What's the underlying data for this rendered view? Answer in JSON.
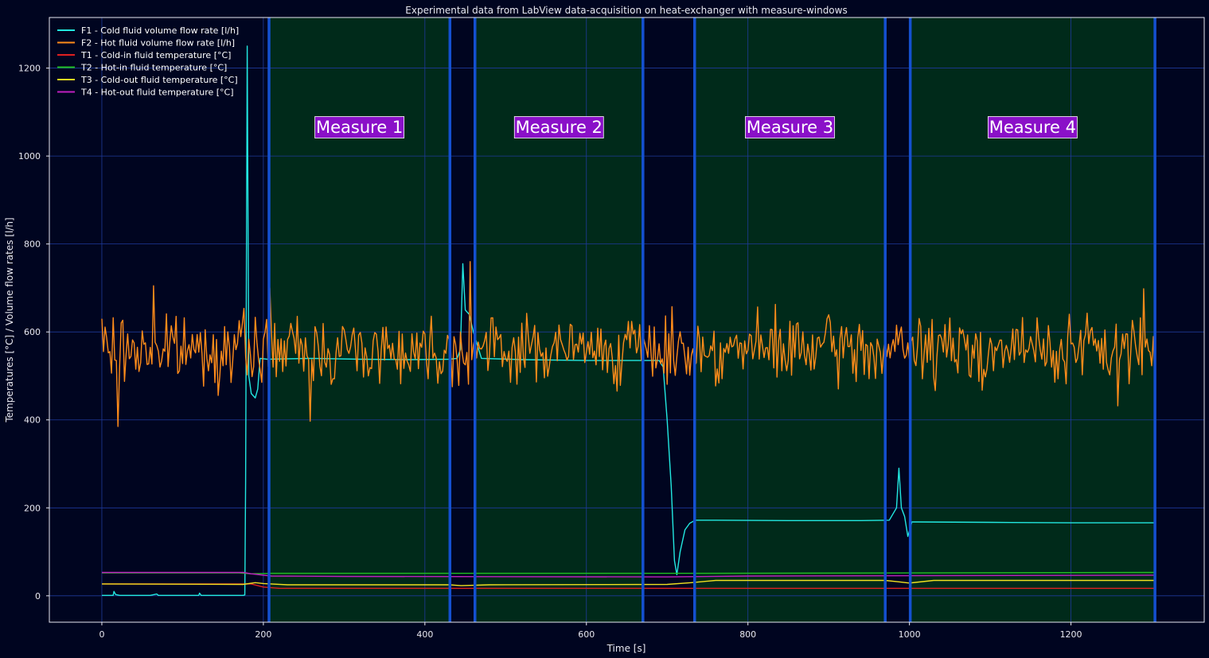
{
  "chart_data": {
    "type": "line",
    "title": "Experimental data from LabView data-acquisition on heat-exchanger with measure-windows",
    "xlabel": "Time [s]",
    "ylabel": "Temperatures [°C]    /   Volume flow rates [l/h]",
    "xlim": [
      -65,
      1365
    ],
    "ylim": [
      -60,
      1315
    ],
    "xticks": [
      0,
      200,
      400,
      600,
      800,
      1000,
      1200
    ],
    "yticks": [
      0,
      200,
      400,
      600,
      800,
      1000,
      1200
    ],
    "grid": true,
    "legend_position": "top-left",
    "background": "#000520",
    "grid_color": "#1f3a9a",
    "measure_fill": "#002a1a",
    "measure_line_color": "#1450d0",
    "measure_label_bg": "#8a10c8",
    "measure_windows": [
      {
        "label": "Measure 1",
        "start": 207,
        "end": 431
      },
      {
        "label": "Measure 2",
        "start": 462,
        "end": 670
      },
      {
        "label": "Measure 3",
        "start": 734,
        "end": 970
      },
      {
        "label": "Measure 4",
        "start": 1001,
        "end": 1304
      }
    ],
    "series": [
      {
        "name": "F1 - Cold fluid volume flow rate [l/h]",
        "color": "#22e8e0",
        "points": [
          [
            0,
            1
          ],
          [
            14,
            1
          ],
          [
            15,
            10
          ],
          [
            17,
            3
          ],
          [
            22,
            1
          ],
          [
            60,
            1
          ],
          [
            68,
            4
          ],
          [
            70,
            1
          ],
          [
            120,
            1
          ],
          [
            121,
            6
          ],
          [
            123,
            1
          ],
          [
            175,
            1
          ],
          [
            177,
            2
          ],
          [
            178,
            260
          ],
          [
            180,
            1250
          ],
          [
            182,
            500
          ],
          [
            185,
            460
          ],
          [
            190,
            450
          ],
          [
            193,
            470
          ],
          [
            196,
            540
          ],
          [
            205,
            538
          ],
          [
            260,
            540
          ],
          [
            320,
            538
          ],
          [
            380,
            537
          ],
          [
            430,
            538
          ],
          [
            440,
            540
          ],
          [
            444,
            560
          ],
          [
            447,
            755
          ],
          [
            450,
            650
          ],
          [
            455,
            640
          ],
          [
            460,
            600
          ],
          [
            470,
            540
          ],
          [
            520,
            537
          ],
          [
            600,
            535
          ],
          [
            660,
            535
          ],
          [
            690,
            535
          ],
          [
            695,
            520
          ],
          [
            700,
            400
          ],
          [
            705,
            250
          ],
          [
            709,
            80
          ],
          [
            712,
            48
          ],
          [
            716,
            100
          ],
          [
            722,
            150
          ],
          [
            728,
            165
          ],
          [
            735,
            172
          ],
          [
            760,
            172
          ],
          [
            850,
            171
          ],
          [
            940,
            171
          ],
          [
            975,
            172
          ],
          [
            984,
            200
          ],
          [
            987,
            290
          ],
          [
            990,
            200
          ],
          [
            994,
            180
          ],
          [
            998,
            135
          ],
          [
            1003,
            168
          ],
          [
            1010,
            168
          ],
          [
            1100,
            167
          ],
          [
            1200,
            166
          ],
          [
            1304,
            166
          ]
        ]
      },
      {
        "name": "F2 - Hot fluid volume flow rate [l/h]",
        "color": "#ff8c1a",
        "noise": true,
        "seed": 7,
        "mean": 560,
        "amplitude": 55,
        "xrange": [
          0,
          1304
        ],
        "step": 2,
        "spikes": [
          [
            0,
            630
          ],
          [
            20,
            385
          ],
          [
            64,
            705
          ],
          [
            208,
            700
          ],
          [
            258,
            397
          ],
          [
            456,
            760
          ],
          [
            1258,
            432
          ],
          [
            1290,
            698
          ],
          [
            1304,
            470
          ]
        ]
      },
      {
        "name": "T1 - Cold-in fluid temperature [°C]",
        "color": "#e02020",
        "points": [
          [
            0,
            27
          ],
          [
            170,
            27
          ],
          [
            185,
            27
          ],
          [
            200,
            20
          ],
          [
            220,
            17
          ],
          [
            700,
            17
          ],
          [
            1304,
            17
          ]
        ]
      },
      {
        "name": "T2 - Hot-in fluid temperature [°C]",
        "color": "#20c020",
        "points": [
          [
            0,
            52
          ],
          [
            170,
            52
          ],
          [
            185,
            50
          ],
          [
            210,
            51
          ],
          [
            700,
            51
          ],
          [
            1000,
            52
          ],
          [
            1304,
            53
          ]
        ]
      },
      {
        "name": "T3 - Cold-out fluid temperature [°C]",
        "color": "#f0e020",
        "points": [
          [
            0,
            27
          ],
          [
            175,
            26
          ],
          [
            190,
            30
          ],
          [
            200,
            28
          ],
          [
            230,
            25
          ],
          [
            430,
            25
          ],
          [
            445,
            23
          ],
          [
            480,
            25
          ],
          [
            700,
            26
          ],
          [
            730,
            30
          ],
          [
            760,
            35
          ],
          [
            970,
            35
          ],
          [
            985,
            32
          ],
          [
            1000,
            29
          ],
          [
            1030,
            35
          ],
          [
            1304,
            35
          ]
        ]
      },
      {
        "name": "T4 - Hot-out fluid temperature [°C]",
        "color": "#c020c0",
        "points": [
          [
            0,
            53
          ],
          [
            175,
            53
          ],
          [
            185,
            50
          ],
          [
            210,
            45
          ],
          [
            300,
            44
          ],
          [
            700,
            43
          ],
          [
            800,
            45
          ],
          [
            1304,
            47
          ]
        ]
      }
    ]
  }
}
